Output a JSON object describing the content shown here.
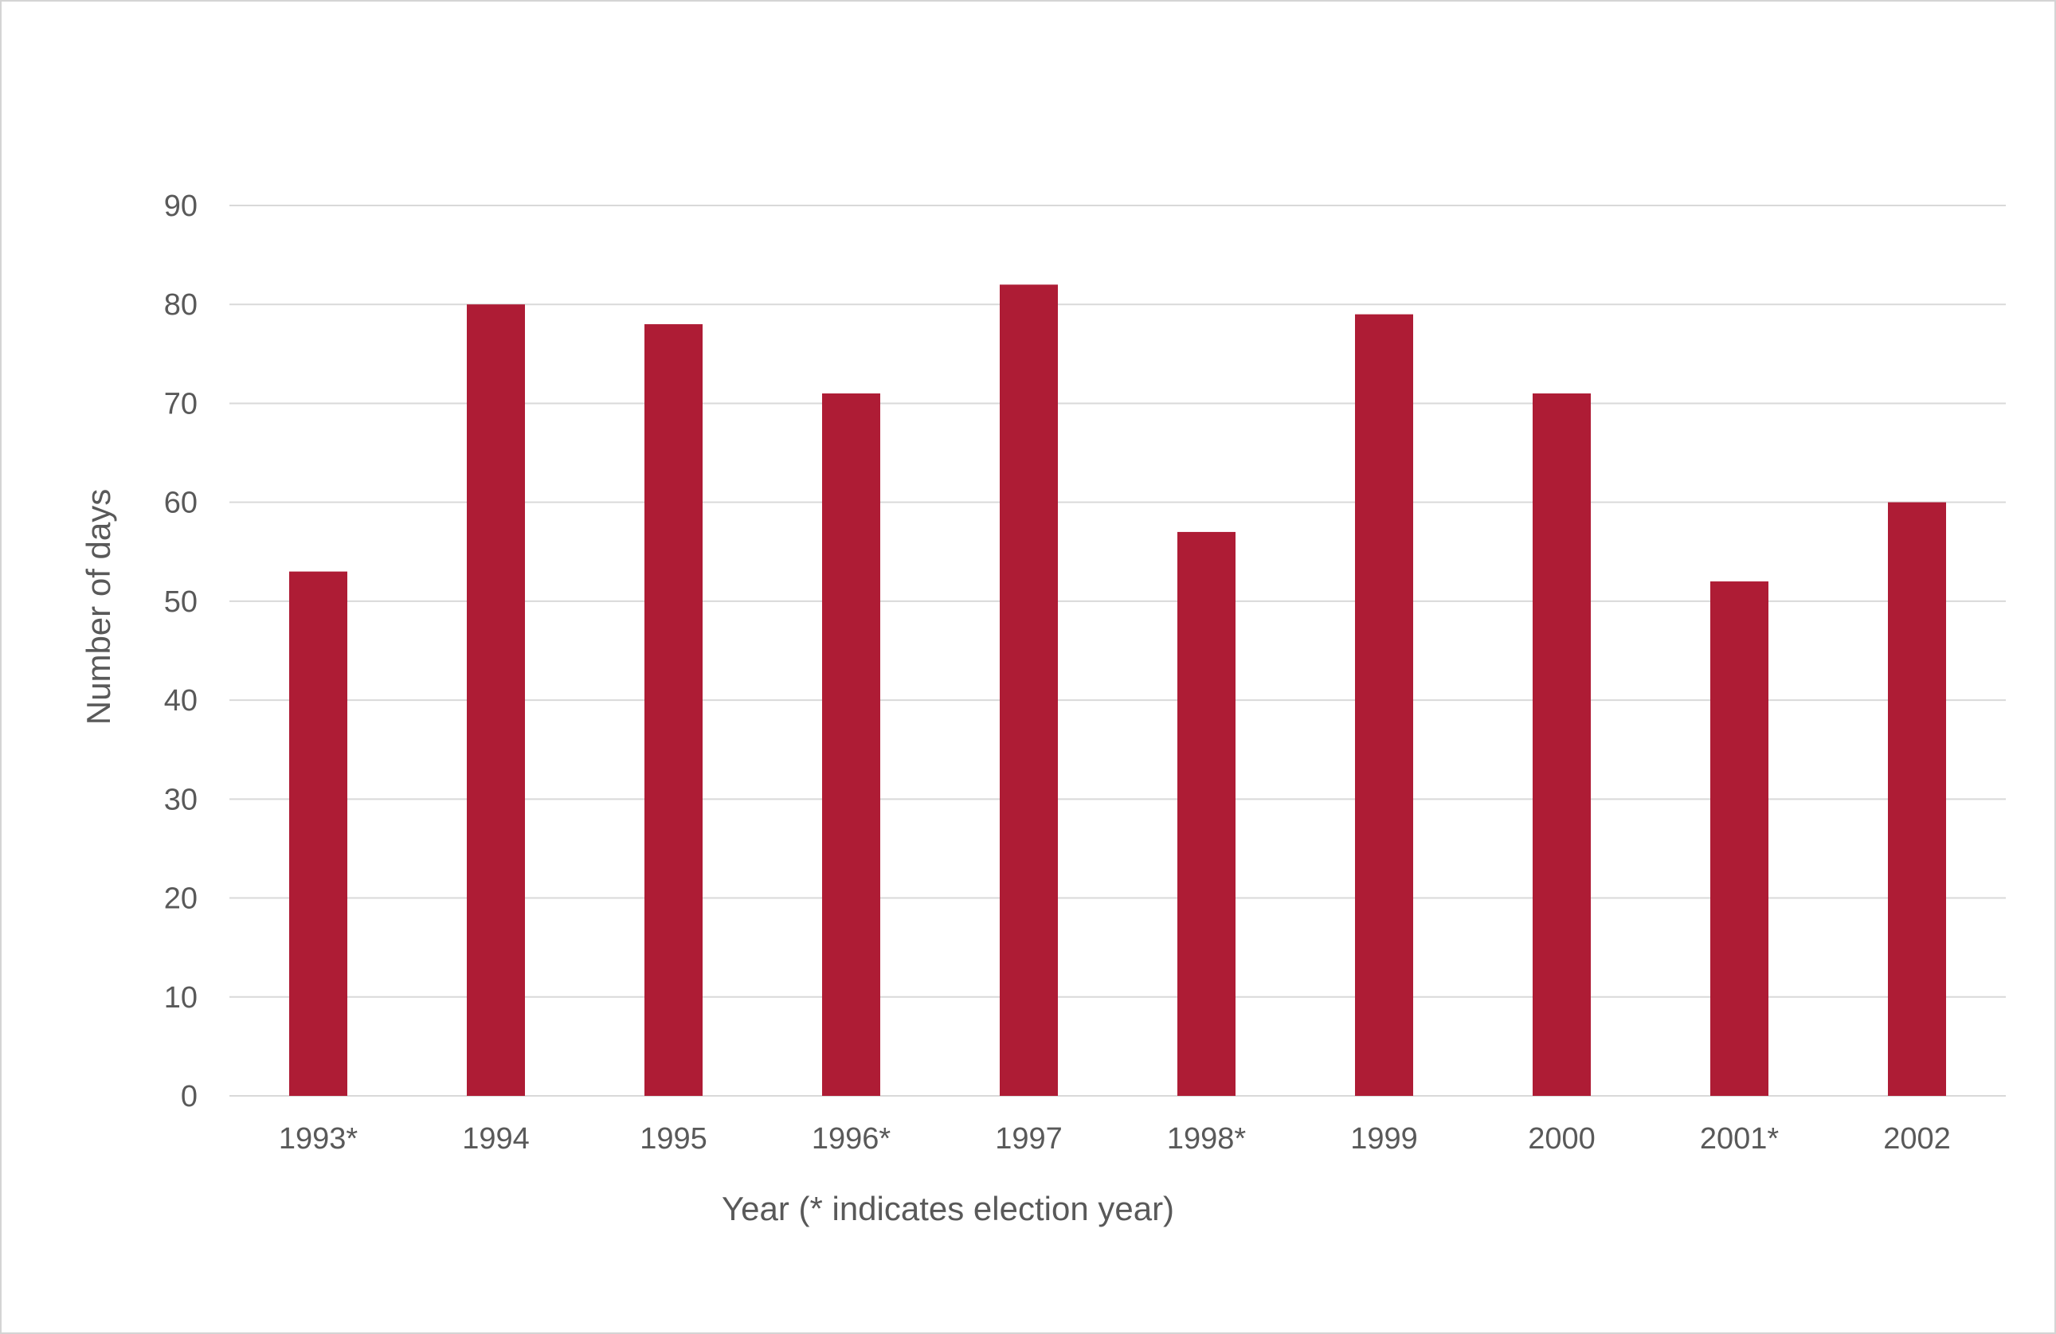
{
  "chart_data": {
    "type": "bar",
    "title": "",
    "categories": [
      "1993*",
      "1994",
      "1995",
      "1996*",
      "1997",
      "1998*",
      "1999",
      "2000",
      "2001*",
      "2002"
    ],
    "values": [
      53,
      80,
      78,
      71,
      82,
      57,
      79,
      71,
      52,
      60
    ],
    "xlabel": "Year (* indicates election year)",
    "ylabel": "Number of days",
    "ylim": [
      0,
      90
    ],
    "yticks": [
      0,
      10,
      20,
      30,
      40,
      50,
      60,
      70,
      80,
      90
    ],
    "grid": true,
    "legend": "none",
    "colors": {
      "bar": "#ae1c35",
      "grid": "#d9d9d9",
      "text": "#595959"
    }
  }
}
